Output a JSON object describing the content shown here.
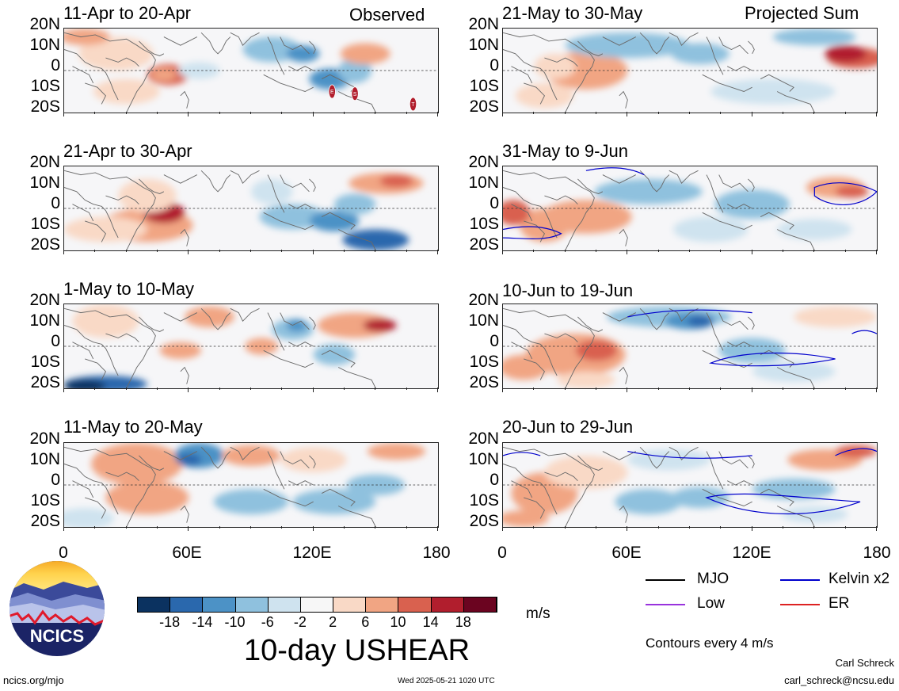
{
  "left_header": "Observed",
  "right_header": "Projected Sum",
  "lat_labels": [
    "20N",
    "10N",
    "0",
    "10S",
    "20S"
  ],
  "lon_labels": [
    "0",
    "60E",
    "120E",
    "180"
  ],
  "panels_left": [
    {
      "title": "11-Apr to 20-Apr"
    },
    {
      "title": "21-Apr to 30-Apr"
    },
    {
      "title": "1-May to 10-May"
    },
    {
      "title": "11-May to 20-May"
    }
  ],
  "panels_right": [
    {
      "title": "21-May to 30-May"
    },
    {
      "title": "31-May to 9-Jun"
    },
    {
      "title": "10-Jun to 19-Jun"
    },
    {
      "title": "20-Jun to 29-Jun"
    }
  ],
  "storm_markers": [
    "E",
    "S",
    "T"
  ],
  "colorbar": {
    "colors": [
      "#0b3260",
      "#2a68ad",
      "#4c92c6",
      "#8fc1de",
      "#cfe3ef",
      "#f7f7f7",
      "#f9d9c6",
      "#f1a583",
      "#d9614f",
      "#b11e2d",
      "#6b0420"
    ],
    "tick_labels": [
      "-18",
      "-14",
      "-10",
      "-6",
      "-2",
      "2",
      "6",
      "10",
      "14",
      "18"
    ],
    "unit": "m/s"
  },
  "plot_title": "10-day USHEAR",
  "legend": {
    "items": [
      {
        "label": "MJO",
        "color": "#000000"
      },
      {
        "label": "Kelvin x2",
        "color": "#0000cc"
      },
      {
        "label": "Low",
        "color": "#9933dd"
      },
      {
        "label": "ER",
        "color": "#dd2222"
      }
    ],
    "contour_note": "Contours every 4 m/s"
  },
  "logo_text": "NCICS",
  "footer": {
    "url": "ncics.org/mjo",
    "timestamp": "Wed 2025-05-21 1020 UTC",
    "author": "Carl Schreck",
    "email": "carl_schreck@ncsu.edu"
  }
}
